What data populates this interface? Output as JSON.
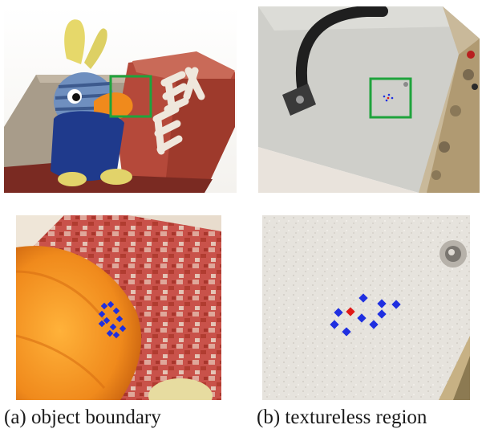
{
  "figure": {
    "captions": {
      "a": "(a)  object boundary",
      "b": "(b) textureless region"
    },
    "highlight_color": "#1fa33c",
    "point_colors": {
      "neighbors": "#1f2fe0",
      "center": "#e01818"
    },
    "panels": {
      "a_top": "toy-bird-on-brick-photo",
      "b_top": "equipment-box-photo",
      "a_zoom": "object-boundary-zoom",
      "b_zoom": "textureless-region-zoom"
    }
  }
}
